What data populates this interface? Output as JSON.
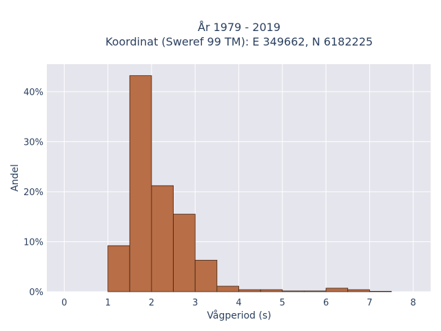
{
  "chart_data": {
    "type": "bar",
    "title_line1": "År 1979 - 2019",
    "title_line2": "Koordinat (Sweref 99 TM): E 349662, N 6182225",
    "xlabel": "Vågperiod (s)",
    "ylabel": "Andel",
    "xlim": [
      -0.4,
      8.4
    ],
    "ylim": [
      0,
      45.5
    ],
    "x_ticks": [
      0,
      1,
      2,
      3,
      4,
      5,
      6,
      7,
      8
    ],
    "y_ticks": [
      0,
      10,
      20,
      30,
      40
    ],
    "y_tick_labels": [
      "0%",
      "10%",
      "20%",
      "30%",
      "40%"
    ],
    "bin_width": 0.5,
    "bins": [
      {
        "start": 1.0,
        "end": 1.5,
        "value": 9.2
      },
      {
        "start": 1.5,
        "end": 2.0,
        "value": 43.2
      },
      {
        "start": 2.0,
        "end": 2.5,
        "value": 21.2
      },
      {
        "start": 2.5,
        "end": 3.0,
        "value": 15.5
      },
      {
        "start": 3.0,
        "end": 3.5,
        "value": 6.3
      },
      {
        "start": 3.5,
        "end": 4.0,
        "value": 1.1
      },
      {
        "start": 4.0,
        "end": 4.5,
        "value": 0.4
      },
      {
        "start": 4.5,
        "end": 5.0,
        "value": 0.4
      },
      {
        "start": 5.0,
        "end": 5.5,
        "value": 0.15
      },
      {
        "start": 5.5,
        "end": 6.0,
        "value": 0.15
      },
      {
        "start": 6.0,
        "end": 6.5,
        "value": 0.7
      },
      {
        "start": 6.5,
        "end": 7.0,
        "value": 0.4
      },
      {
        "start": 7.0,
        "end": 7.5,
        "value": 0.08
      }
    ],
    "grid": true,
    "colors": {
      "bar_fill": "#b86e46",
      "bar_stroke": "#3a2418",
      "plot_bg": "#e5e5ed",
      "grid": "#ffffff"
    }
  }
}
